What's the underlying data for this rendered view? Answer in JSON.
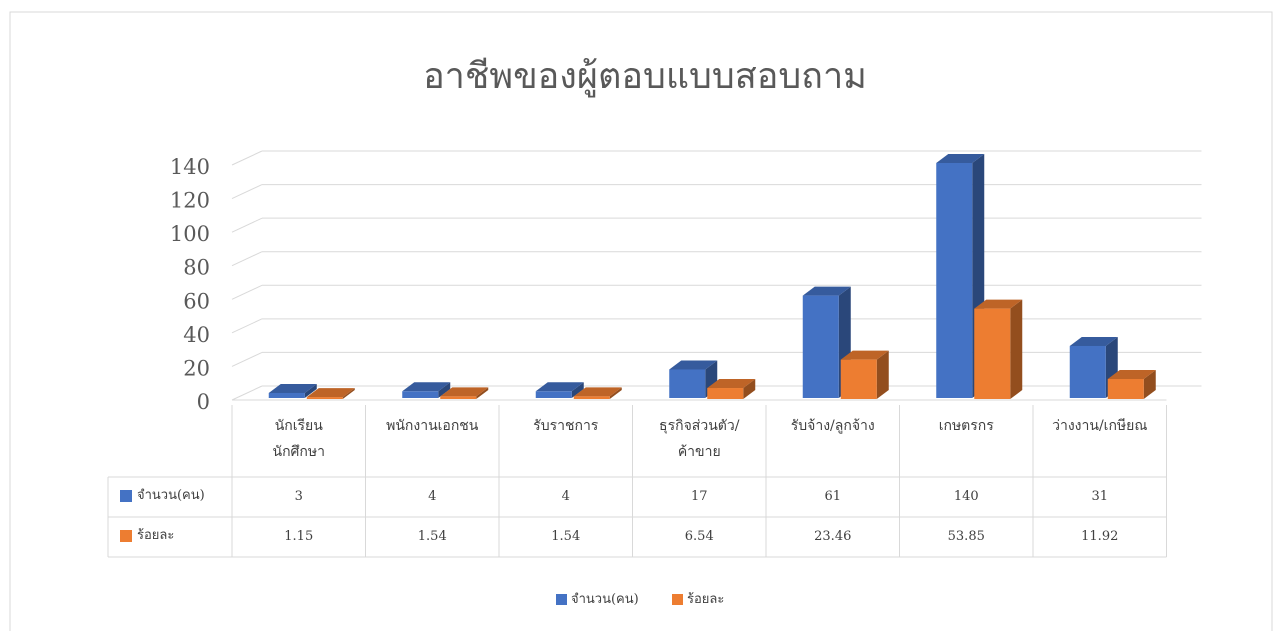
{
  "chart_data": {
    "type": "bar3d",
    "title": "อาชีพของผู้ตอบแบบสอบถาม",
    "categories": [
      "นักเรียน\nนักศึกษา",
      "พนักงานเอกชน",
      "รับราชการ",
      "ธุรกิจส่วนตัว/\nค้าขาย",
      "รับจ้าง/ลูกจ้าง",
      "เกษตรกร",
      "ว่างงาน/เกษียณ"
    ],
    "series": [
      {
        "name": "จำนวน(คน)",
        "color": "#4472c4",
        "values": [
          3,
          4,
          4,
          17,
          61,
          140,
          31
        ]
      },
      {
        "name": "ร้อยละ",
        "color": "#ed7d31",
        "values": [
          1.15,
          1.54,
          1.54,
          6.54,
          23.46,
          53.85,
          11.92
        ]
      }
    ],
    "ylim": [
      0,
      140
    ],
    "yticks": [
      0,
      20,
      40,
      60,
      80,
      100,
      120,
      140
    ],
    "grid": true,
    "data_table": true,
    "legend": "bottom"
  }
}
